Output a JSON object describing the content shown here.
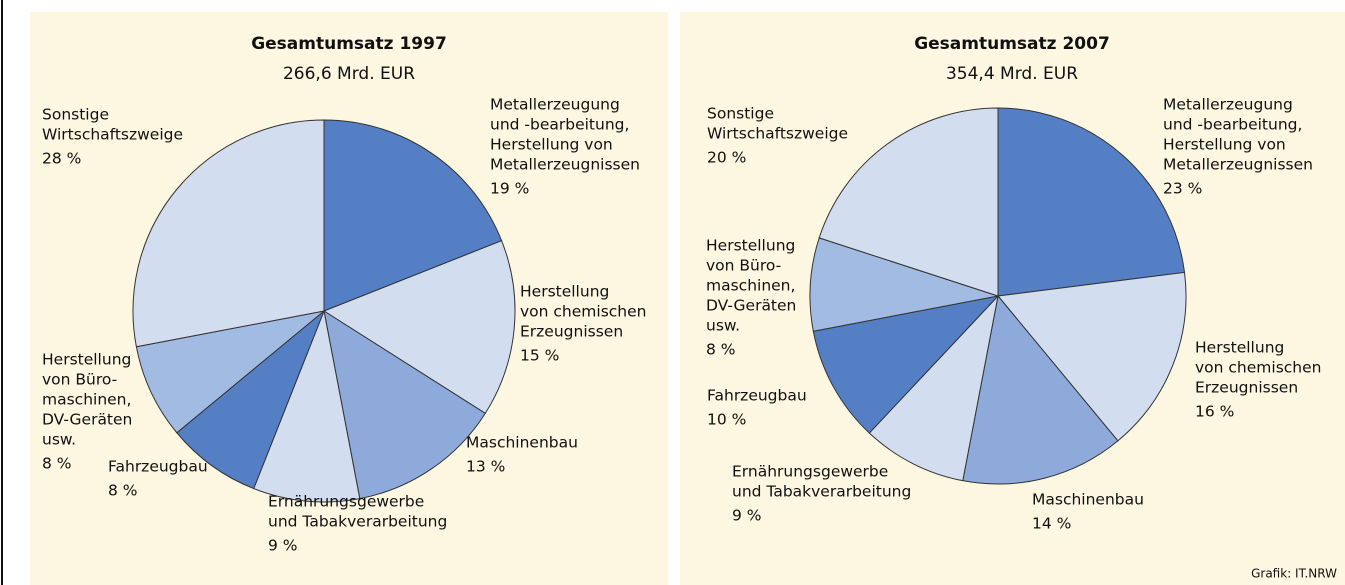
{
  "chart_data": [
    {
      "type": "pie",
      "title": "Gesamtumsatz 1997",
      "subtitle": "266,6 Mrd. EUR",
      "categories": [
        [
          "Metallerzeugung",
          "und -bearbeitung,",
          "Herstellung von",
          "Metallerzeugnissen"
        ],
        [
          "Herstellung",
          "von chemischen",
          "Erzeugnissen"
        ],
        [
          "Maschinenbau"
        ],
        [
          "Ernährungsgewerbe",
          "und Tabakverarbeitung"
        ],
        [
          "Fahrzeugbau"
        ],
        [
          "Herstellung",
          "von Büro-",
          "maschinen,",
          "DV-Geräten",
          "usw."
        ],
        [
          "Sonstige",
          "Wirtschaftszweige"
        ]
      ],
      "values": [
        19,
        15,
        13,
        9,
        8,
        8,
        28
      ],
      "value_labels": [
        "19 %",
        "15 %",
        "13 %",
        "9 %",
        "8 %",
        "8 %",
        "28 %"
      ],
      "colors": [
        "#557fc4",
        "#d3ddf0",
        "#8eaadb",
        "#d3ddf0",
        "#557fc4",
        "#a2bbe3",
        "#d3ddf0"
      ]
    },
    {
      "type": "pie",
      "title": "Gesamtumsatz 2007",
      "subtitle": "354,4 Mrd. EUR",
      "categories": [
        [
          "Metallerzeugung",
          "und -bearbeitung,",
          "Herstellung von",
          "Metallerzeugnissen"
        ],
        [
          "Herstellung",
          "von chemischen",
          "Erzeugnissen"
        ],
        [
          "Maschinenbau"
        ],
        [
          "Ernährungsgewerbe",
          "und Tabakverarbeitung"
        ],
        [
          "Fahrzeugbau"
        ],
        [
          "Herstellung",
          "von Büro-",
          "maschinen,",
          "DV-Geräten",
          "usw."
        ],
        [
          "Sonstige",
          "Wirtschaftszweige"
        ]
      ],
      "values": [
        23,
        16,
        14,
        9,
        10,
        8,
        20
      ],
      "value_labels": [
        "23 %",
        "16 %",
        "14 %",
        "9 %",
        "10 %",
        "8 %",
        "20 %"
      ],
      "colors": [
        "#557fc4",
        "#d3ddf0",
        "#8eaadb",
        "#d3ddf0",
        "#557fc4",
        "#a2bbe3",
        "#d3ddf0"
      ]
    }
  ],
  "source": "Grafik: IT.NRW"
}
